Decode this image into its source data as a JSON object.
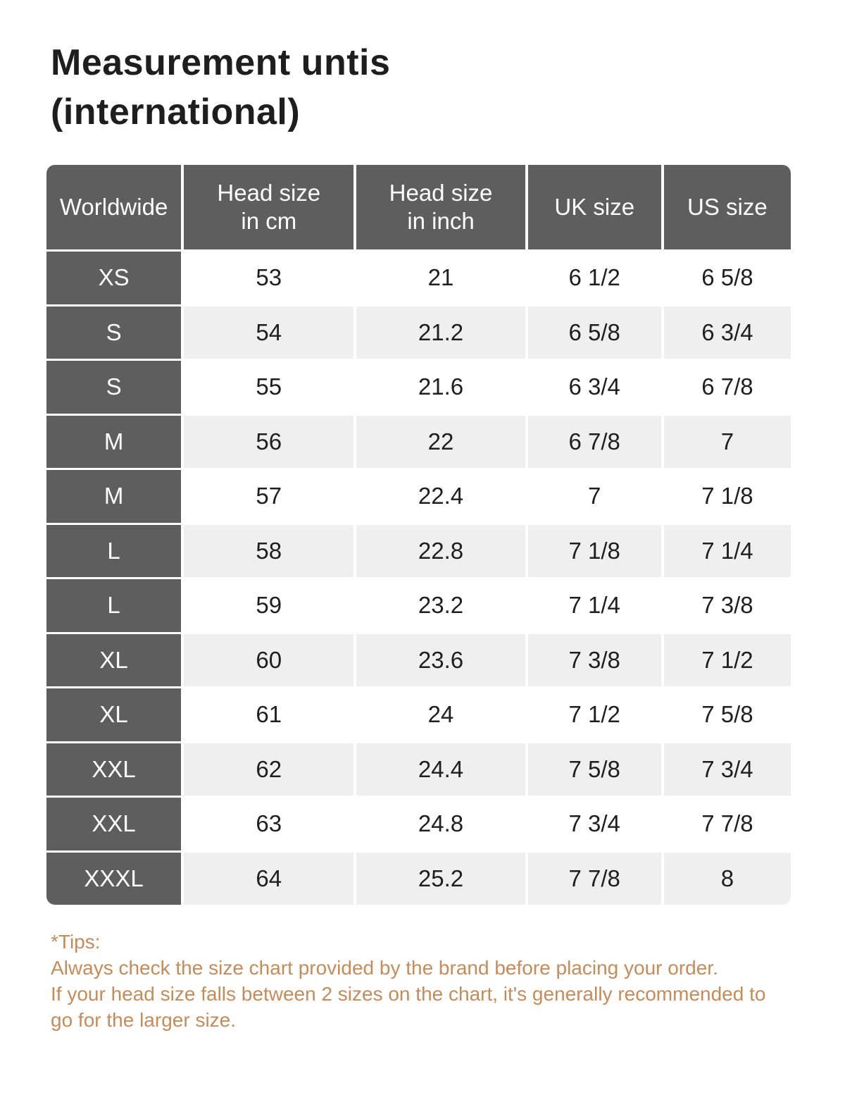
{
  "page": {
    "title_lines": [
      "Measurement untis",
      "(international)"
    ]
  },
  "chart_data": {
    "type": "table",
    "title": "Measurement untis (international)",
    "columns": [
      "Worldwide",
      "Head size in cm",
      "Head size in inch",
      "UK size",
      "US size"
    ],
    "rows": [
      [
        "XS",
        "53",
        "21",
        "6 1/2",
        "6 5/8"
      ],
      [
        "S",
        "54",
        "21.2",
        "6 5/8",
        "6 3/4"
      ],
      [
        "S",
        "55",
        "21.6",
        "6 3/4",
        "6 7/8"
      ],
      [
        "M",
        "56",
        "22",
        "6 7/8",
        "7"
      ],
      [
        "M",
        "57",
        "22.4",
        "7",
        "7 1/8"
      ],
      [
        "L",
        "58",
        "22.8",
        "7 1/8",
        "7 1/4"
      ],
      [
        "L",
        "59",
        "23.2",
        "7 1/4",
        "7 3/8"
      ],
      [
        "XL",
        "60",
        "23.6",
        "7 3/8",
        "7 1/2"
      ],
      [
        "XL",
        "61",
        "24",
        "7 1/2",
        "7 5/8"
      ],
      [
        "XXL",
        "62",
        "24.4",
        "7 5/8",
        "7 3/4"
      ],
      [
        "XXL",
        "63",
        "24.8",
        "7 3/4",
        "7 7/8"
      ],
      [
        "XXXL",
        "64",
        "25.2",
        "7 7/8",
        "8"
      ]
    ]
  },
  "tips": {
    "lines": [
      "*Tips:",
      "Always check the size chart provided by the brand before placing your order.",
      "If your head size falls between 2 sizes on the chart, it's generally recommended to",
      "go for the larger size."
    ]
  },
  "colors": {
    "title_text": "#1e1e1e",
    "header_bg": "#5e5e5e",
    "header_text": "#ffffff",
    "cell_text": "#1f1f1f",
    "row_bg": "#ffffff",
    "row_alt_bg": "#efefef",
    "tips_text": "#c58c5a",
    "page_bg": "#ffffff"
  }
}
